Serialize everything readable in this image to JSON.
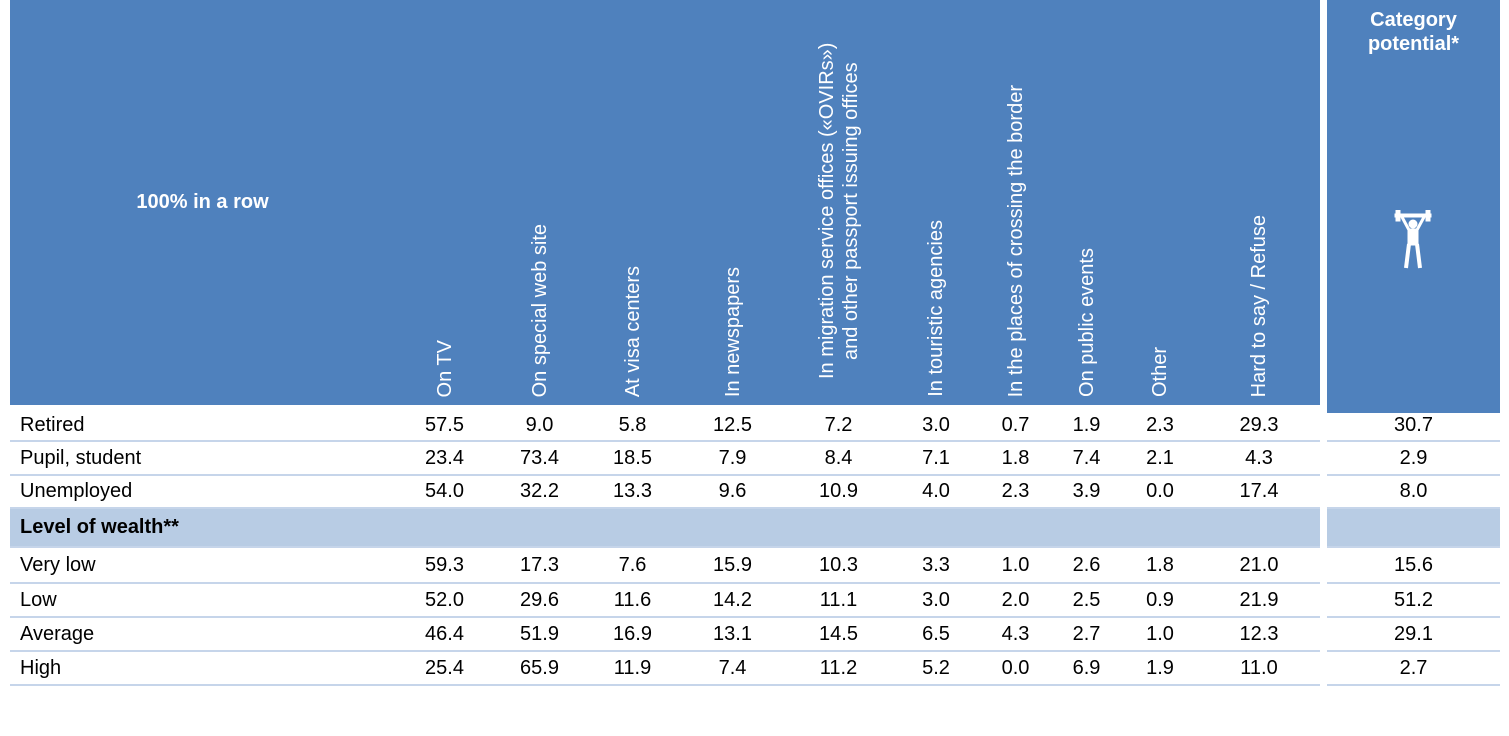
{
  "header": {
    "corner": "100% in a row",
    "columns": [
      "On TV",
      "On special web site",
      "At visa centers",
      "In newspapers",
      "In migration service offices («OVIRs») and other passport issuing offices",
      "In touristic agencies",
      "In the places of crossing the border",
      "On public events",
      "Other",
      "Hard to say / Refuse"
    ],
    "potential": "Category potential*"
  },
  "rows": [
    {
      "label": "Retired",
      "values": [
        "57.5",
        "9.0",
        "5.8",
        "12.5",
        "7.2",
        "3.0",
        "0.7",
        "1.9",
        "2.3",
        "29.3"
      ],
      "potential": "30.7"
    },
    {
      "label": "Pupil, student",
      "values": [
        "23.4",
        "73.4",
        "18.5",
        "7.9",
        "8.4",
        "7.1",
        "1.8",
        "7.4",
        "2.1",
        "4.3"
      ],
      "potential": "2.9"
    },
    {
      "label": "Unemployed",
      "values": [
        "54.0",
        "32.2",
        "13.3",
        "9.6",
        "10.9",
        "4.0",
        "2.3",
        "3.9",
        "0.0",
        "17.4"
      ],
      "potential": "8.0"
    },
    {
      "label": "Level of wealth**"
    },
    {
      "label": "Very low",
      "values": [
        "59.3",
        "17.3",
        "7.6",
        "15.9",
        "10.3",
        "3.3",
        "1.0",
        "2.6",
        "1.8",
        "21.0"
      ],
      "potential": "15.6"
    },
    {
      "label": "Low",
      "values": [
        "52.0",
        "29.6",
        "11.6",
        "14.2",
        "11.1",
        "3.0",
        "2.0",
        "2.5",
        "0.9",
        "21.9"
      ],
      "potential": "51.2"
    },
    {
      "label": "Average",
      "values": [
        "46.4",
        "51.9",
        "16.9",
        "13.1",
        "14.5",
        "6.5",
        "4.3",
        "2.7",
        "1.0",
        "12.3"
      ],
      "potential": "29.1"
    },
    {
      "label": "High",
      "values": [
        "25.4",
        "65.9",
        "11.9",
        "7.4",
        "11.2",
        "5.2",
        "0.0",
        "6.9",
        "1.9",
        "11.0"
      ],
      "potential": "2.7"
    }
  ]
}
